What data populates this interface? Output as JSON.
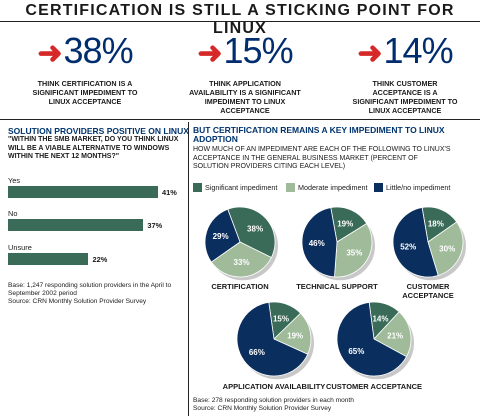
{
  "title": "CERTIFICATION IS STILL A STICKING POINT FOR LINUX",
  "stats": [
    {
      "value": "38%",
      "text": "THINK CERTIFICATION IS A SIGNIFICANT IMPEDIMENT TO LINUX ACCEPTANCE"
    },
    {
      "value": "15%",
      "text": "THINK APPLICATION AVAILABILITY IS A SIGNIFICANT IMPEDIMENT TO LINUX ACCEPTANCE"
    },
    {
      "value": "14%",
      "text": "THINK CUSTOMER ACCEPTANCE IS A SIGNIFICANT IMPEDIMENT TO LINUX ACCEPTANCE"
    }
  ],
  "left": {
    "heading": "SOLUTION PROVIDERS POSITIVE ON LINUX",
    "question": "\"WITHIN THE SMB MARKET, DO YOU THINK LINUX WILL BE A VIABLE ALTERNATIVE TO WINDOWS WITHIN THE NEXT 12 MONTHS?\"",
    "note": "Base: 1,247 responding solution providers in the April to September 2002 period",
    "source": "Source: CRN Monthly Solution Provider Survey"
  },
  "right": {
    "heading": "BUT CERTIFICATION REMAINS A KEY IMPEDIMENT TO LINUX ADOPTION",
    "sub": "HOW MUCH OF AN IMPEDIMENT ARE EACH OF THE FOLLOWING TO LINUX'S ACCEPTANCE IN THE GENERAL BUSINESS MARKET (PERCENT OF SOLUTION PROVIDERS CITING EACH LEVEL)",
    "note": "Base: 278 responding solution providers in each month",
    "source": "Source: CRN Monthly Solution Provider Survey"
  },
  "colors": {
    "significant": "#3a6a58",
    "moderate": "#9fbb9a",
    "little": "#0a2e5e",
    "arrow": "#d62828",
    "big": "#002d6e"
  },
  "chart_data": [
    {
      "type": "bar",
      "orientation": "horizontal",
      "categories": [
        "Yes",
        "No",
        "Unsure"
      ],
      "values": [
        41,
        37,
        22
      ],
      "value_labels": [
        "41%",
        "37%",
        "22%"
      ],
      "xlim": [
        0,
        41
      ]
    },
    {
      "type": "pie",
      "legend": [
        "Significant impediment",
        "Moderate impediment",
        "Little/no impediment"
      ],
      "pies": [
        {
          "label": "CERTIFICATION",
          "values": [
            38,
            33,
            29
          ]
        },
        {
          "label": "TECHNICAL SUPPORT",
          "values": [
            19,
            35,
            46
          ]
        },
        {
          "label": "CUSTOMER ACCEPTANCE",
          "values": [
            18,
            30,
            52
          ]
        },
        {
          "label": "APPLICATION AVAILABILITY",
          "values": [
            15,
            19,
            66
          ]
        },
        {
          "label": "CUSTOMER ACCEPTANCE",
          "values": [
            14,
            21,
            65
          ]
        }
      ]
    }
  ]
}
